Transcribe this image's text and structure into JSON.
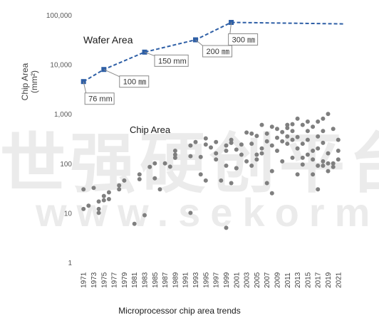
{
  "chart_data": {
    "type": "scatter",
    "title": "",
    "ylabel": "Chip Area",
    "ylabel_unit": "(mm²)",
    "caption": "Microprocessor chip area trends",
    "y_scale": "log",
    "ylim": [
      1,
      100000
    ],
    "xlim": [
      1970,
      2022
    ],
    "y_ticks": [
      "1",
      "10",
      "100",
      "1,000",
      "10,000",
      "100,000"
    ],
    "x_ticks": [
      "1971",
      "1973",
      "1975",
      "1977",
      "1979",
      "1981",
      "1983",
      "1985",
      "1987",
      "1989",
      "1991",
      "1993",
      "1995",
      "1997",
      "1999",
      "2001",
      "2003",
      "2005",
      "2007",
      "2009",
      "2011",
      "2013",
      "2015",
      "2017",
      "2019",
      "2021"
    ],
    "grid": false,
    "series": [
      {
        "name": "Wafer Area",
        "style": "dashed-line-with-markers",
        "color": "#2e5fa6",
        "points": [
          {
            "x": 1971,
            "y": 4500,
            "label": "76 mm"
          },
          {
            "x": 1975,
            "y": 7900,
            "label": "100 ㎜"
          },
          {
            "x": 1983,
            "y": 17700,
            "label": "150 mm"
          },
          {
            "x": 1993,
            "y": 31400,
            "label": "200 ㎜"
          },
          {
            "x": 2000,
            "y": 70700,
            "label": "300 ㎜"
          }
        ],
        "projection": {
          "x": [
            2000,
            2022
          ],
          "y": [
            70700,
            66000
          ]
        }
      },
      {
        "name": "Chip Area",
        "style": "scatter",
        "color": "#7f7f7f",
        "points": [
          [
            1971,
            12
          ],
          [
            1971,
            30
          ],
          [
            1972,
            14
          ],
          [
            1973,
            32
          ],
          [
            1974,
            10
          ],
          [
            1974,
            12
          ],
          [
            1974,
            17
          ],
          [
            1975,
            18
          ],
          [
            1975,
            22
          ],
          [
            1976,
            19
          ],
          [
            1976,
            26
          ],
          [
            1978,
            30
          ],
          [
            1978,
            36
          ],
          [
            1979,
            45
          ],
          [
            1981,
            6
          ],
          [
            1982,
            48
          ],
          [
            1982,
            60
          ],
          [
            1983,
            9
          ],
          [
            1984,
            85
          ],
          [
            1985,
            50
          ],
          [
            1985,
            100
          ],
          [
            1986,
            30
          ],
          [
            1987,
            100
          ],
          [
            1988,
            86
          ],
          [
            1989,
            150
          ],
          [
            1989,
            180
          ],
          [
            1989,
            130
          ],
          [
            1992,
            10
          ],
          [
            1992,
            230
          ],
          [
            1992,
            140
          ],
          [
            1993,
            270
          ],
          [
            1994,
            60
          ],
          [
            1994,
            135
          ],
          [
            1995,
            320
          ],
          [
            1995,
            240
          ],
          [
            1995,
            45
          ],
          [
            1996,
            210
          ],
          [
            1997,
            160
          ],
          [
            1997,
            270
          ],
          [
            1997,
            120
          ],
          [
            1998,
            45
          ],
          [
            1999,
            5
          ],
          [
            1999,
            230
          ],
          [
            1999,
            90
          ],
          [
            1999,
            180
          ],
          [
            2000,
            300
          ],
          [
            2000,
            40
          ],
          [
            2000,
            260
          ],
          [
            2001,
            190
          ],
          [
            2001,
            80
          ],
          [
            2001,
            80
          ],
          [
            2002,
            150
          ],
          [
            2002,
            240
          ],
          [
            2003,
            420
          ],
          [
            2003,
            110
          ],
          [
            2004,
            400
          ],
          [
            2004,
            250
          ],
          [
            2004,
            90
          ],
          [
            2005,
            150
          ],
          [
            2005,
            360
          ],
          [
            2005,
            120
          ],
          [
            2006,
            200
          ],
          [
            2006,
            600
          ],
          [
            2006,
            160
          ],
          [
            2007,
            400
          ],
          [
            2007,
            280
          ],
          [
            2007,
            40
          ],
          [
            2008,
            550
          ],
          [
            2008,
            230
          ],
          [
            2008,
            70
          ],
          [
            2008,
            25
          ],
          [
            2009,
            500
          ],
          [
            2009,
            330
          ],
          [
            2009,
            180
          ],
          [
            2010,
            430
          ],
          [
            2010,
            280
          ],
          [
            2010,
            110
          ],
          [
            2011,
            600
          ],
          [
            2011,
            520
          ],
          [
            2011,
            250
          ],
          [
            2011,
            350
          ],
          [
            2012,
            300
          ],
          [
            2012,
            620
          ],
          [
            2012,
            450
          ],
          [
            2012,
            130
          ],
          [
            2013,
            800
          ],
          [
            2013,
            200
          ],
          [
            2013,
            340
          ],
          [
            2013,
            60
          ],
          [
            2014,
            600
          ],
          [
            2014,
            250
          ],
          [
            2014,
            130
          ],
          [
            2014,
            95
          ],
          [
            2015,
            700
          ],
          [
            2015,
            150
          ],
          [
            2015,
            450
          ],
          [
            2015,
            300
          ],
          [
            2016,
            120
          ],
          [
            2016,
            60
          ],
          [
            2016,
            550
          ],
          [
            2016,
            180
          ],
          [
            2017,
            700
          ],
          [
            2017,
            90
          ],
          [
            2017,
            350
          ],
          [
            2017,
            200
          ],
          [
            2017,
            30
          ],
          [
            2018,
            800
          ],
          [
            2018,
            110
          ],
          [
            2018,
            450
          ],
          [
            2018,
            260
          ],
          [
            2018,
            90
          ],
          [
            2019,
            100
          ],
          [
            2019,
            1000
          ],
          [
            2019,
            70
          ],
          [
            2019,
            160
          ],
          [
            2020,
            100
          ],
          [
            2020,
            500
          ],
          [
            2020,
            85
          ],
          [
            2021,
            180
          ],
          [
            2021,
            120
          ],
          [
            2021,
            300
          ]
        ]
      }
    ]
  },
  "watermark": {
    "line1": "世强硬创平台",
    "line2": "www.sekorm.com"
  }
}
